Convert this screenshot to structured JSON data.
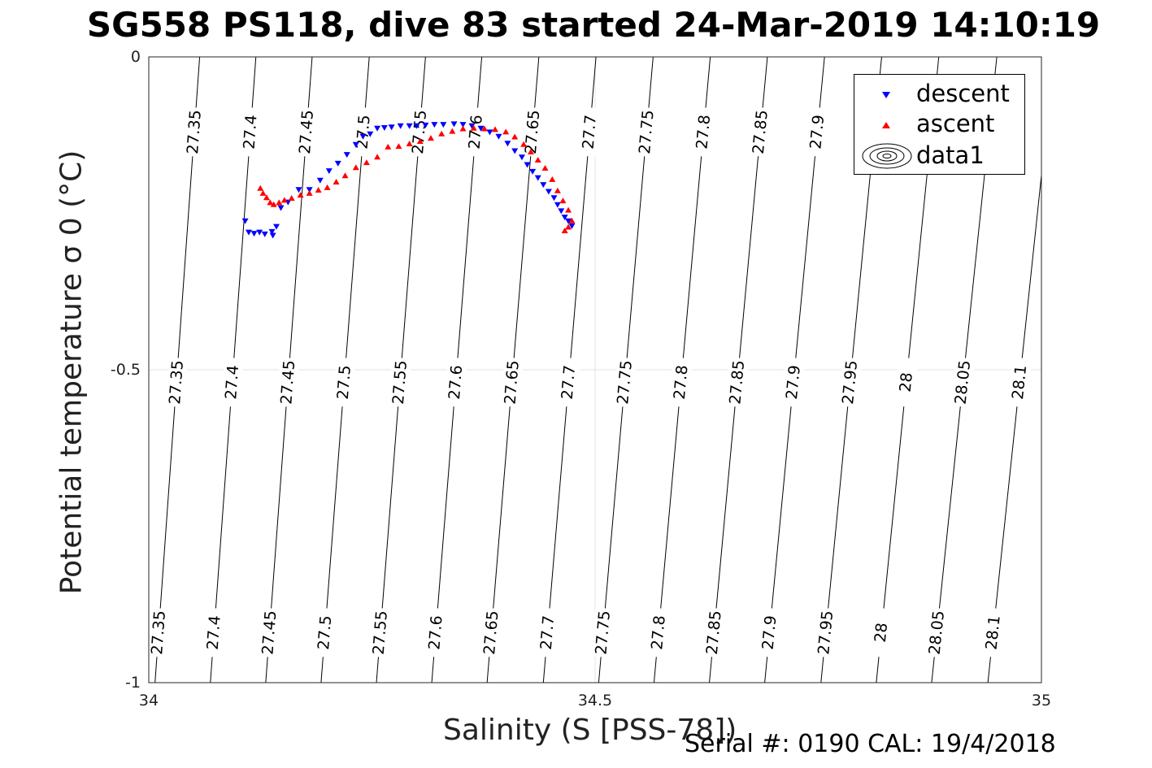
{
  "title": "SG558 PS118, dive 83 started 24-Mar-2019 14:10:19",
  "footer": "Serial #: 0190  CAL: 19/4/2018",
  "chart_data": {
    "type": "scatter",
    "title": "SG558 PS118, dive 83 started 24-Mar-2019 14:10:19",
    "xlabel": "Salinity (S [PSS-78])",
    "ylabel": "Potential temperature σ 0 (°C)",
    "xlim": [
      34,
      35
    ],
    "ylim": [
      -1,
      0
    ],
    "x_ticks": [
      "34",
      "34.5",
      "35"
    ],
    "y_ticks": [
      "0",
      "-0.5",
      "-1"
    ],
    "grid": true,
    "legend_position": "top-right",
    "legend": [
      "descent",
      "ascent",
      "data1"
    ],
    "contour_levels": [
      "27.35",
      "27.4",
      "27.45",
      "27.5",
      "27.55",
      "27.6",
      "27.65",
      "27.7",
      "27.75",
      "27.8",
      "27.85",
      "27.9",
      "27.95",
      "28",
      "28.05",
      "28.1"
    ],
    "contour_bottom_salinity": [
      34.007,
      34.069,
      34.131,
      34.193,
      34.255,
      34.317,
      34.379,
      34.442,
      34.504,
      34.566,
      34.628,
      34.69,
      34.753,
      34.815,
      34.877,
      34.94
    ],
    "contour_top_salinity": [
      34.057,
      34.12,
      34.183,
      34.247,
      34.31,
      34.373,
      34.437,
      34.501,
      34.565,
      34.629,
      34.693,
      34.757,
      34.821,
      34.885,
      34.95,
      35.014
    ],
    "series": [
      {
        "name": "descent",
        "color": "#0000ff",
        "marker": "triangle-down",
        "x": [
          34.108,
          34.112,
          34.118,
          34.124,
          34.13,
          34.138,
          34.143,
          34.139,
          34.148,
          34.156,
          34.168,
          34.18,
          34.192,
          34.202,
          34.212,
          34.222,
          34.232,
          34.24,
          34.248,
          34.256,
          34.264,
          34.272,
          34.282,
          34.292,
          34.3,
          34.31,
          34.32,
          34.33,
          34.342,
          34.352,
          34.362,
          34.372,
          34.382,
          34.392,
          34.402,
          34.41,
          34.418,
          34.424,
          34.43,
          34.436,
          34.442,
          34.448,
          34.454,
          34.458,
          34.462,
          34.466,
          34.47,
          34.474
        ],
        "y": [
          -0.262,
          -0.28,
          -0.282,
          -0.28,
          -0.283,
          -0.279,
          -0.271,
          -0.285,
          -0.241,
          -0.232,
          -0.212,
          -0.212,
          -0.197,
          -0.182,
          -0.17,
          -0.156,
          -0.14,
          -0.127,
          -0.123,
          -0.114,
          -0.113,
          -0.112,
          -0.11,
          -0.11,
          -0.11,
          -0.109,
          -0.108,
          -0.108,
          -0.107,
          -0.108,
          -0.11,
          -0.114,
          -0.12,
          -0.127,
          -0.138,
          -0.15,
          -0.16,
          -0.172,
          -0.183,
          -0.193,
          -0.204,
          -0.215,
          -0.225,
          -0.236,
          -0.246,
          -0.256,
          -0.262,
          -0.27
        ]
      },
      {
        "name": "ascent",
        "color": "#ff0000",
        "marker": "triangle-up",
        "x": [
          34.125,
          34.128,
          34.132,
          34.136,
          34.14,
          34.146,
          34.152,
          34.16,
          34.17,
          34.18,
          34.19,
          34.2,
          34.21,
          34.22,
          34.232,
          34.244,
          34.256,
          34.268,
          34.28,
          34.292,
          34.304,
          34.316,
          34.328,
          34.34,
          34.352,
          34.364,
          34.376,
          34.388,
          34.4,
          34.41,
          34.42,
          34.428,
          34.436,
          34.444,
          34.452,
          34.458,
          34.464,
          34.47,
          34.474,
          34.47,
          34.466
        ],
        "y": [
          -0.21,
          -0.218,
          -0.225,
          -0.233,
          -0.236,
          -0.233,
          -0.229,
          -0.226,
          -0.221,
          -0.218,
          -0.213,
          -0.209,
          -0.2,
          -0.19,
          -0.177,
          -0.169,
          -0.16,
          -0.144,
          -0.143,
          -0.139,
          -0.135,
          -0.13,
          -0.123,
          -0.119,
          -0.115,
          -0.114,
          -0.115,
          -0.116,
          -0.12,
          -0.128,
          -0.14,
          -0.152,
          -0.165,
          -0.178,
          -0.196,
          -0.214,
          -0.23,
          -0.245,
          -0.262,
          -0.272,
          -0.278
        ]
      }
    ]
  }
}
